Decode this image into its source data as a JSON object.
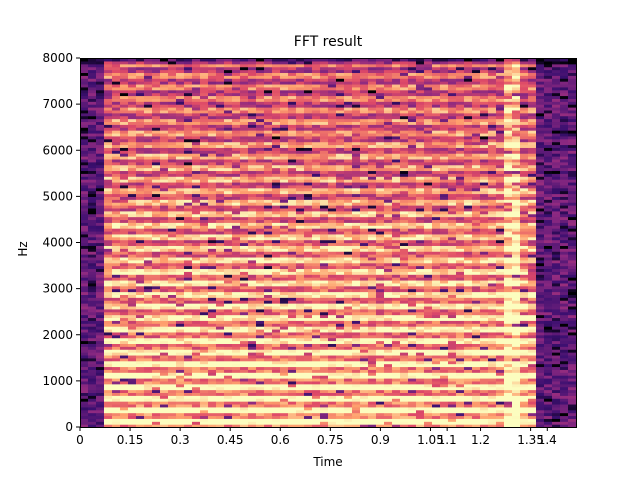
{
  "chart_data": {
    "type": "heatmap",
    "title": "FFT result",
    "xlabel": "Time",
    "ylabel": "Hz",
    "xlim": [
      0,
      1.486
    ],
    "ylim": [
      0,
      8000
    ],
    "x_ticks": [
      "0",
      "0.15",
      "0.3",
      "0.45",
      "0.6",
      "0.75",
      "0.9",
      "1.05",
      "1.2",
      "1.35"
    ],
    "x_tick_values": [
      0,
      0.15,
      0.3,
      0.45,
      0.6,
      0.75,
      0.9,
      1.05,
      1.2,
      1.35
    ],
    "x_minor_ticks": [
      "1.1",
      "1.4"
    ],
    "x_minor_tick_values": [
      1.1,
      1.4
    ],
    "y_ticks": [
      "0",
      "1000",
      "2000",
      "3000",
      "4000",
      "5000",
      "6000",
      "7000",
      "8000"
    ],
    "y_tick_values": [
      0,
      1000,
      2000,
      3000,
      4000,
      5000,
      6000,
      7000,
      8000
    ],
    "colormap": "magma",
    "colors": [
      "#000004",
      "#3b0f70",
      "#8c2981",
      "#de4968",
      "#fe9f6d",
      "#fcfdbf"
    ],
    "grid": false,
    "signal_onset_time": 0.06,
    "signal_offset_time": 1.36,
    "intensity_summary": "harmonic bands strongest below 2500 Hz, fading toward 8000 Hz; bright transient near t=1.3"
  }
}
